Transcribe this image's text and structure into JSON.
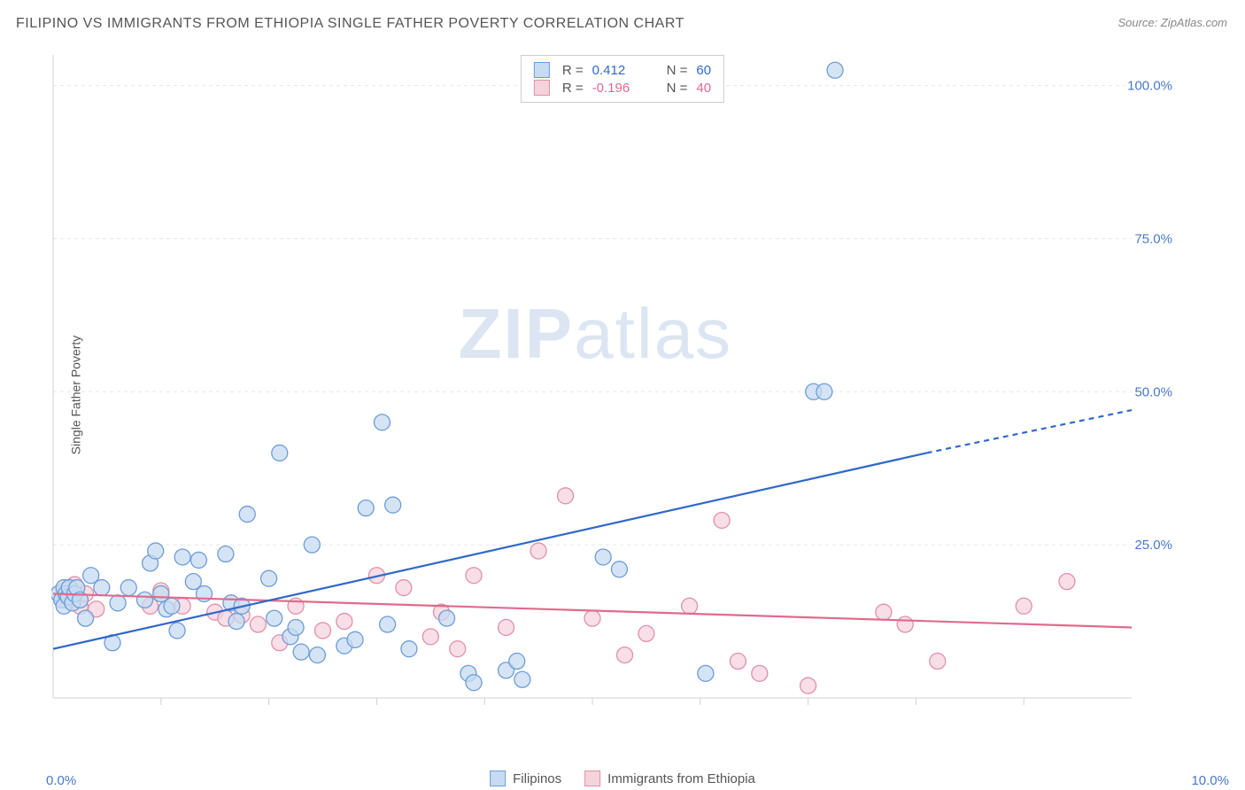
{
  "title": "FILIPINO VS IMMIGRANTS FROM ETHIOPIA SINGLE FATHER POVERTY CORRELATION CHART",
  "source": "Source: ZipAtlas.com",
  "ylabel": "Single Father Poverty",
  "watermark_a": "ZIP",
  "watermark_b": "atlas",
  "chart": {
    "type": "scatter",
    "xlim": [
      0,
      10
    ],
    "ylim": [
      0,
      105
    ],
    "xtick_positions": [
      1,
      2,
      3,
      4,
      5,
      6,
      7,
      8,
      9
    ],
    "ytick_positions": [
      25,
      50,
      75,
      100
    ],
    "ytick_labels": [
      "25.0%",
      "50.0%",
      "75.0%",
      "100.0%"
    ],
    "xlabel_min": "0.0%",
    "xlabel_max": "10.0%",
    "background_color": "#ffffff",
    "grid_color": "#e6e6e6",
    "axis_color": "#d0d0d0",
    "tick_label_color": "#4878c8",
    "marker_radius": 9,
    "marker_stroke_width": 1.3,
    "series": {
      "a": {
        "label": "Filipinos",
        "fill": "#c7dbf2",
        "stroke": "#6d9cd8",
        "line_color": "#2f68c9",
        "R": "0.412",
        "N": "60",
        "trend": {
          "x1": 0,
          "y1": 8,
          "x2": 8.1,
          "y2": 40,
          "x2_dash": 10,
          "y2_dash": 47
        },
        "points": [
          [
            0.05,
            17
          ],
          [
            0.08,
            16
          ],
          [
            0.1,
            18
          ],
          [
            0.1,
            15
          ],
          [
            0.12,
            17
          ],
          [
            0.14,
            16.5
          ],
          [
            0.15,
            18
          ],
          [
            0.18,
            15.5
          ],
          [
            0.2,
            17
          ],
          [
            0.22,
            18
          ],
          [
            0.25,
            16
          ],
          [
            0.3,
            13
          ],
          [
            0.35,
            20
          ],
          [
            0.45,
            18
          ],
          [
            0.55,
            9
          ],
          [
            0.6,
            15.5
          ],
          [
            0.7,
            18
          ],
          [
            0.85,
            16
          ],
          [
            0.9,
            22
          ],
          [
            0.95,
            24
          ],
          [
            1.0,
            17
          ],
          [
            1.05,
            14.5
          ],
          [
            1.1,
            15
          ],
          [
            1.15,
            11
          ],
          [
            1.2,
            23
          ],
          [
            1.3,
            19
          ],
          [
            1.35,
            22.5
          ],
          [
            1.4,
            17
          ],
          [
            1.6,
            23.5
          ],
          [
            1.65,
            15.5
          ],
          [
            1.7,
            12.5
          ],
          [
            1.75,
            15
          ],
          [
            1.8,
            30
          ],
          [
            2.0,
            19.5
          ],
          [
            2.05,
            13
          ],
          [
            2.1,
            40
          ],
          [
            2.2,
            10
          ],
          [
            2.25,
            11.5
          ],
          [
            2.3,
            7.5
          ],
          [
            2.4,
            25
          ],
          [
            2.45,
            7
          ],
          [
            2.7,
            8.5
          ],
          [
            2.8,
            9.5
          ],
          [
            2.9,
            31
          ],
          [
            3.05,
            45
          ],
          [
            3.1,
            12
          ],
          [
            3.15,
            31.5
          ],
          [
            3.3,
            8
          ],
          [
            3.65,
            13
          ],
          [
            3.85,
            4
          ],
          [
            3.9,
            2.5
          ],
          [
            4.2,
            4.5
          ],
          [
            4.3,
            6
          ],
          [
            4.35,
            3
          ],
          [
            5.1,
            23
          ],
          [
            5.25,
            21
          ],
          [
            6.05,
            4
          ],
          [
            7.05,
            50
          ],
          [
            7.15,
            50
          ],
          [
            7.25,
            102.5
          ]
        ]
      },
      "b": {
        "label": "Immigrants from Ethiopia",
        "fill": "#f5d3dd",
        "stroke": "#e091a8",
        "line_color": "#e06a8c",
        "R": "-0.196",
        "N": "40",
        "trend": {
          "x1": 0,
          "y1": 17,
          "x2": 10,
          "y2": 11.5
        },
        "points": [
          [
            0.1,
            17.5
          ],
          [
            0.12,
            16
          ],
          [
            0.15,
            18
          ],
          [
            0.2,
            18.5
          ],
          [
            0.25,
            15
          ],
          [
            0.3,
            17
          ],
          [
            0.4,
            14.5
          ],
          [
            0.9,
            15
          ],
          [
            1.0,
            17.5
          ],
          [
            1.2,
            15
          ],
          [
            1.5,
            14
          ],
          [
            1.6,
            13
          ],
          [
            1.75,
            13.5
          ],
          [
            1.9,
            12
          ],
          [
            2.1,
            9
          ],
          [
            2.25,
            15
          ],
          [
            2.5,
            11
          ],
          [
            2.7,
            12.5
          ],
          [
            3.0,
            20
          ],
          [
            3.25,
            18
          ],
          [
            3.5,
            10
          ],
          [
            3.6,
            14
          ],
          [
            3.75,
            8
          ],
          [
            3.9,
            20
          ],
          [
            4.2,
            11.5
          ],
          [
            4.5,
            24
          ],
          [
            4.75,
            33
          ],
          [
            5.0,
            13
          ],
          [
            5.3,
            7
          ],
          [
            5.5,
            10.5
          ],
          [
            5.9,
            15
          ],
          [
            6.2,
            29
          ],
          [
            6.35,
            6
          ],
          [
            6.55,
            4
          ],
          [
            7.0,
            2
          ],
          [
            7.7,
            14
          ],
          [
            7.9,
            12
          ],
          [
            8.2,
            6
          ],
          [
            9.0,
            15
          ],
          [
            9.4,
            19
          ]
        ]
      }
    }
  },
  "legend": {
    "a": "Filipinos",
    "b": "Immigrants from Ethiopia"
  }
}
